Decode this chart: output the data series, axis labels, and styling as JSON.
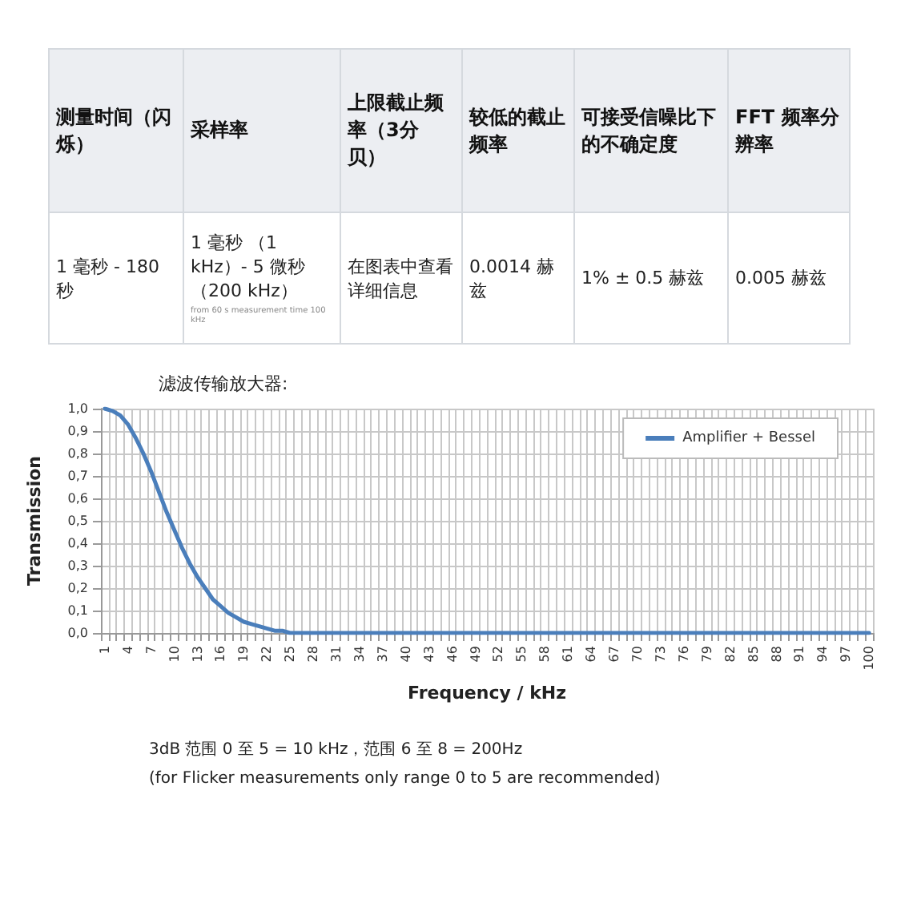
{
  "chart_data": [
    {
      "type": "other",
      "categories": [
        "测量时间（闪烁）",
        "采样率",
        "上限截止频率（3分贝）",
        "较低的截止频率",
        "可接受信噪比下的不确定度",
        "FFT 频率分辨率"
      ],
      "annotations": [
        "1 毫秒 - 180 秒",
        "1 毫秒 （1 kHz）- 5 微秒（200 kHz）",
        "在图表中查看详细信息",
        "0.0014 赫兹",
        "1% ± 0.5 赫兹",
        "0.005 赫兹",
        "from 60 s measurement time 100 kHz"
      ]
    },
    {
      "type": "line",
      "title": "滤波传输放大器:",
      "xlabel": "Frequency / kHz",
      "ylabel": "Transmission",
      "categories": [
        "1",
        null,
        null,
        "4",
        null,
        null,
        "7",
        null,
        null,
        "10",
        null,
        null,
        "13",
        null,
        null,
        "16",
        null,
        null,
        "19",
        null,
        null,
        "22",
        null,
        null,
        "25",
        null,
        null,
        "28",
        null,
        null,
        "31",
        null,
        null,
        "34",
        null,
        null,
        "37",
        null,
        null,
        "40",
        null,
        null,
        "43",
        null,
        null,
        "46",
        null,
        null,
        "49",
        null,
        null,
        "52",
        null,
        null,
        "55",
        null,
        null,
        "58",
        null,
        null,
        "61",
        null,
        null,
        "64",
        null,
        null,
        "67",
        null,
        null,
        "70",
        null,
        null,
        "73",
        null,
        null,
        "76",
        null,
        null,
        "79",
        null,
        null,
        "82",
        null,
        null,
        "85",
        null,
        null,
        "88",
        null,
        null,
        "91",
        null,
        null,
        "94",
        null,
        null,
        "97",
        null,
        null,
        "100"
      ],
      "series": [
        {
          "name": "Amplifier + Bessel",
          "color": "#4a7ebb",
          "values": [
            1,
            0.99,
            0.97,
            0.93,
            0.87,
            0.8,
            0.72,
            0.63,
            0.54,
            0.46,
            0.38,
            0.31,
            0.25,
            0.2,
            0.15,
            0.12,
            0.09,
            0.07,
            0.05,
            0.04,
            0.03,
            0.02,
            0.01,
            0.01,
            0,
            0,
            0,
            0,
            0,
            0,
            0,
            0,
            0,
            0,
            0,
            0,
            0,
            0,
            0,
            0,
            0,
            0,
            0,
            0,
            0,
            0,
            0,
            0,
            0,
            0,
            0,
            0,
            0,
            0,
            0,
            0,
            0,
            0,
            0,
            0,
            0,
            0,
            0,
            0,
            0,
            0,
            0,
            0,
            0,
            0,
            0,
            0,
            0,
            0,
            0,
            0,
            0,
            0,
            0,
            0,
            0,
            0,
            0,
            0,
            0,
            0,
            0,
            0,
            0,
            0,
            0,
            0,
            0,
            0,
            0,
            0,
            0,
            0,
            0,
            0
          ]
        }
      ],
      "ylim": [
        0,
        1
      ],
      "yticks": [
        {
          "value": 0,
          "label": "0,0"
        },
        {
          "value": 0.1,
          "label": "0,1"
        },
        {
          "value": 0.2,
          "label": "0,2"
        },
        {
          "value": 0.3,
          "label": "0,3"
        },
        {
          "value": 0.4,
          "label": "0,4"
        },
        {
          "value": 0.5,
          "label": "0,5"
        },
        {
          "value": 0.6,
          "label": "0,6"
        },
        {
          "value": 0.7,
          "label": "0,7"
        },
        {
          "value": 0.8,
          "label": "0,8"
        },
        {
          "value": 0.9,
          "label": "0,9"
        },
        {
          "value": 1,
          "label": "1,0"
        }
      ],
      "grid": true,
      "legend": "top right",
      "marker": "none",
      "line_style": "solid",
      "annotations": [
        "3dB 范围 0 至 5 = 10 kHz，范围 6 至 8 = 200Hz",
        "(for Flicker measurements only range 0 to 5 are recommended)"
      ]
    }
  ]
}
